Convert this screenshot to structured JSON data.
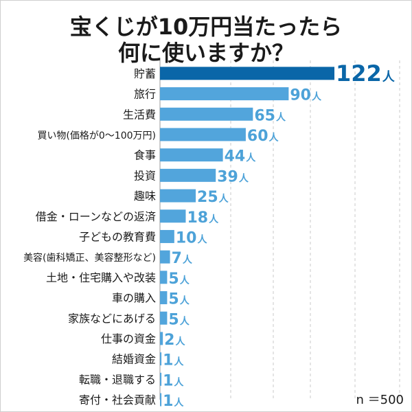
{
  "chart_data": {
    "type": "bar",
    "orientation": "horizontal",
    "title_lines": [
      "宝くじが10万円当たったら",
      "何に使いますか？"
    ],
    "categories": [
      "貯蓄",
      "旅行",
      "生活費",
      "買い物(価格が0～100万円)",
      "食事",
      "投資",
      "趣味",
      "借金・ローンなどの返済",
      "子どもの教育費",
      "美容(歯科矯正、美容整形など)",
      "土地・住宅購入や改装",
      "車の購入",
      "家族などにあげる",
      "仕事の資金",
      "結婚資金",
      "転職・退職する",
      "寄付・社会貢献"
    ],
    "values": [
      122,
      90,
      65,
      60,
      44,
      39,
      25,
      18,
      10,
      7,
      5,
      5,
      5,
      2,
      1,
      1,
      1
    ],
    "unit": "人",
    "xlim": [
      0,
      125
    ],
    "grid": "vertical dashed",
    "note": "n ＝500",
    "colors": {
      "highlight": "#0a66a8",
      "bar": "#52a5dc",
      "highlight_label": "#0a66a8",
      "label": "#4da2d8",
      "grid": "#c8c8c8",
      "text": "#1a1a1a"
    }
  }
}
